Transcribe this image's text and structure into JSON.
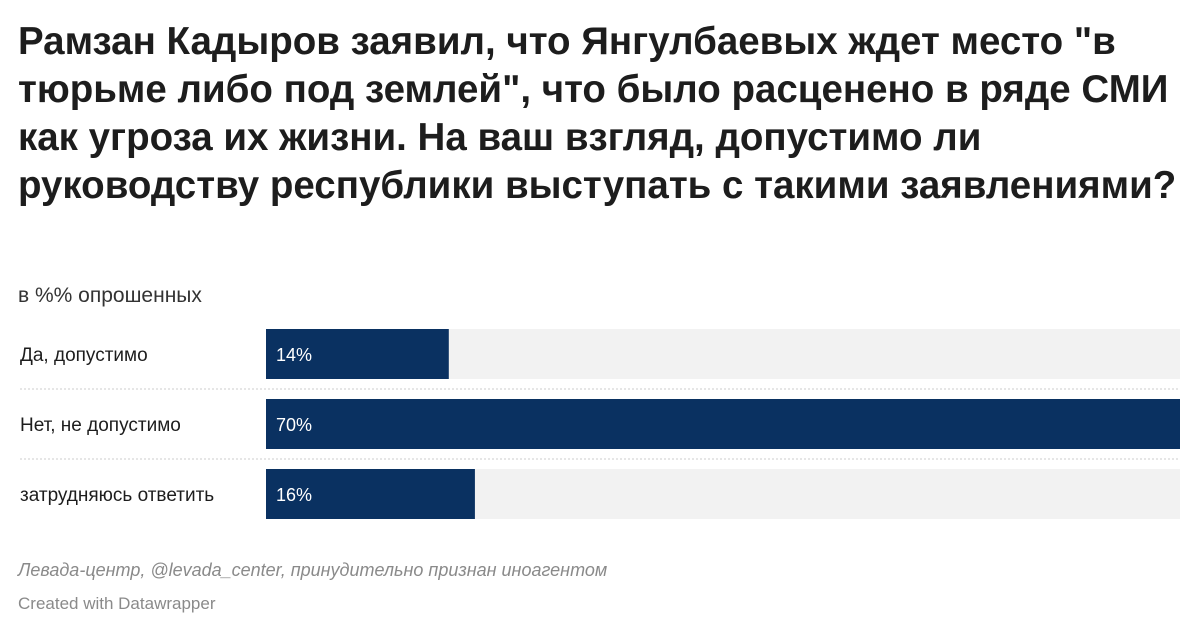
{
  "title": "Рамзан Кадыров заявил, что Янгулбаевых ждет место \"в тюрьме либо под землей\", что было расценено в ряде СМИ как угроза их жизни. На ваш взгляд, допустимо ли руководству республики выступать с такими заявлениями?",
  "subtitle": "в %% опрошенных",
  "source": "Левада-центр, @levada_center, принудительно признан иноагентом",
  "credit": "Created with Datawrapper",
  "colors": {
    "bar": "#0a3161",
    "track": "#f2f2f2",
    "separator": "#cccccc"
  },
  "chart_data": {
    "type": "bar",
    "orientation": "horizontal",
    "categories": [
      "Да, допустимо",
      "Нет, не допустимо",
      "затрудняюсь ответить"
    ],
    "values": [
      14,
      70,
      16
    ],
    "value_labels": [
      "14%",
      "70%",
      "16%"
    ],
    "title": "Рамзан Кадыров заявил, что Янгулбаевых ждет место \"в тюрьме либо под землей\", что было расценено в ряде СМИ как угроза их жизни. На ваш взгляд, допустимо ли руководству республики выступать с такими заявлениями?",
    "subtitle": "в %% опрошенных",
    "xlim": [
      0,
      70
    ],
    "grid": false,
    "legend": "none"
  }
}
